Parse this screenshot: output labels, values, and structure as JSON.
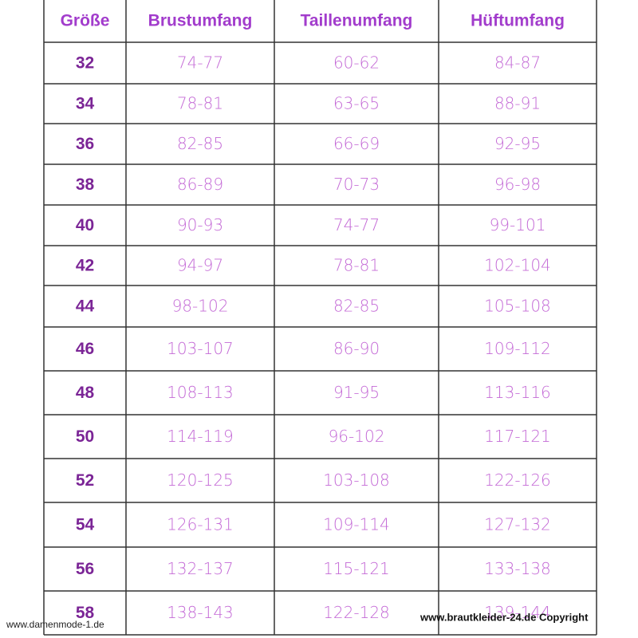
{
  "table": {
    "header": [
      "Größe",
      "Brustumfang",
      "Taillenumfang",
      "Hüftumfang"
    ],
    "rows": [
      [
        "32",
        "74-77",
        "60-62",
        "84-87"
      ],
      [
        "34",
        "78-81",
        "63-65",
        "88-91"
      ],
      [
        "36",
        "82-85",
        "66-69",
        "92-95"
      ],
      [
        "38",
        "86-89",
        "70-73",
        "96-98"
      ],
      [
        "40",
        "90-93",
        "74-77",
        "99-101"
      ],
      [
        "42",
        "94-97",
        "78-81",
        "102-104"
      ],
      [
        "44",
        "98-102",
        "82-85",
        "105-108"
      ],
      [
        "46",
        "103-107",
        "86-90",
        "109-112"
      ],
      [
        "48",
        "108-113",
        "91-95",
        "113-116"
      ],
      [
        "50",
        "114-119",
        "96-102",
        "117-121"
      ],
      [
        "52",
        "120-125",
        "103-108",
        "122-126"
      ],
      [
        "54",
        "126-131",
        "109-114",
        "127-132"
      ],
      [
        "56",
        "132-137",
        "115-121",
        "133-138"
      ],
      [
        "58",
        "138-143",
        "122-128",
        "139-144"
      ]
    ]
  },
  "watermarks": [
    "www.damenmode-1.de",
    "www.brautkleider-24.de Copyright"
  ]
}
